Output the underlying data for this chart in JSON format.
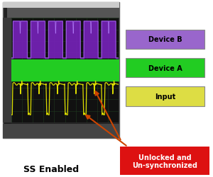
{
  "bg_color": "#ffffff",
  "purple_color": "#7722bb",
  "green_color": "#22cc22",
  "yellow_color": "#dddd00",
  "grid_color": "#1e3a1e",
  "legend_items": [
    {
      "label": "Device B",
      "color": "#9966cc",
      "text_color": "#000000"
    },
    {
      "label": "Device A",
      "color": "#22cc22",
      "text_color": "#000000"
    },
    {
      "label": "Input",
      "color": "#dddd44",
      "text_color": "#000000"
    }
  ],
  "label_ss": "SS Enabled",
  "label_unlocked": "Unlocked and\nUn-synchronized",
  "label_unlocked_color": "#dd1111",
  "arrow_color": "#cc4400",
  "scope_frame_color": "#444444",
  "scope_bg": "#222222",
  "screen_bg": "#111111",
  "menubar_color": "#cccccc",
  "sidebar_color": "#3a3a3a",
  "ctrlbar_color": "#555555",
  "statusbar_color": "#444444"
}
